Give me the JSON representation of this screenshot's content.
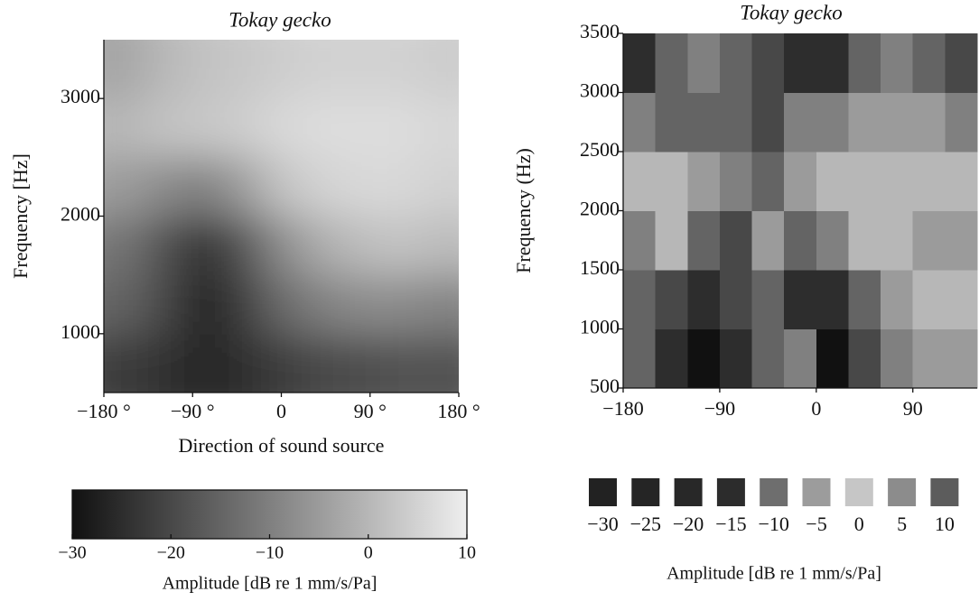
{
  "chart_data": [
    {
      "type": "heatmap",
      "title": "Tokay gecko",
      "xlabel": "Direction of sound source",
      "ylabel": "Frequency [Hz]",
      "x": [
        -160,
        -120,
        -80,
        -40,
        0,
        40,
        80,
        120,
        160
      ],
      "y": [
        750,
        1250,
        1750,
        2250,
        2750,
        3250
      ],
      "z": [
        [
          -22,
          -24,
          -26,
          -25,
          -22,
          -20,
          -19,
          -18,
          -18
        ],
        [
          -15,
          -20,
          -27,
          -22,
          -14,
          -10,
          -8,
          -8,
          -9
        ],
        [
          -12,
          -18,
          -24,
          -18,
          -8,
          -2,
          1,
          2,
          1
        ],
        [
          -5,
          -8,
          -10,
          -5,
          2,
          5,
          6,
          6,
          5
        ],
        [
          0,
          2,
          3,
          4,
          6,
          7,
          7,
          7,
          6
        ],
        [
          -3,
          0,
          2,
          3,
          4,
          5,
          5,
          5,
          4
        ]
      ],
      "zlim": [
        -30,
        10
      ],
      "colormap": [
        "#111111",
        "#eeeeee"
      ],
      "smooth": true,
      "xlim": [
        -180,
        180
      ],
      "xticks": [
        {
          "value": -180,
          "label": "−180 °"
        },
        {
          "value": -90,
          "label": "−90 °"
        },
        0,
        {
          "value": 90,
          "label": "90 °"
        },
        {
          "value": 180,
          "label": "180 °"
        }
      ],
      "ylim": [
        500,
        3500
      ],
      "yticks": [
        1000,
        2000,
        3000
      ],
      "colorbar": {
        "ticks": [
          {
            "value": -30,
            "label": "−30"
          },
          {
            "value": -20,
            "label": "−20"
          },
          {
            "value": -10,
            "label": "−10"
          },
          0,
          10
        ],
        "label": "Amplitude [dB re 1 mm/s/Pa]"
      }
    },
    {
      "type": "heatmap",
      "title": "Tokay gecko",
      "ylabel": "Frequency (Hz)",
      "x": [
        -165,
        -135,
        -105,
        -75,
        -45,
        -15,
        15,
        45,
        75,
        105,
        135
      ],
      "y": [
        750,
        1250,
        1750,
        2250,
        2750,
        3250
      ],
      "z": [
        [
          -15,
          -25,
          -30,
          -25,
          -15,
          -10,
          -30,
          -20,
          -10,
          -5,
          -5
        ],
        [
          -15,
          -20,
          -25,
          -20,
          -15,
          -25,
          -25,
          -15,
          -5,
          0,
          0
        ],
        [
          -10,
          0,
          -15,
          -20,
          -5,
          -15,
          -10,
          0,
          0,
          -5,
          -5
        ],
        [
          0,
          0,
          -5,
          -10,
          -15,
          -5,
          0,
          0,
          0,
          0,
          0
        ],
        [
          -10,
          -15,
          -15,
          -15,
          -20,
          -10,
          -10,
          -5,
          -5,
          -5,
          -10
        ],
        [
          -25,
          -15,
          -10,
          -15,
          -20,
          -25,
          -25,
          -15,
          -10,
          -15,
          -20
        ]
      ],
      "zlim": [
        -30,
        10
      ],
      "colormap": [
        "#111111",
        "#eeeeee"
      ],
      "smooth": false,
      "xlim": [
        -180,
        150
      ],
      "xticks": [
        {
          "value": -180,
          "label": "−180"
        },
        {
          "value": -90,
          "label": "−90"
        },
        0,
        90
      ],
      "ylim": [
        500,
        3500
      ],
      "yticks": [
        500,
        1000,
        1500,
        2000,
        2500,
        3000,
        3500
      ],
      "legend": {
        "values": [
          -30,
          -25,
          -20,
          -15,
          -10,
          -5,
          0,
          5,
          10
        ],
        "value_labels": [
          "−30",
          "−25",
          "−20",
          "−15",
          "−10",
          "−5",
          "0",
          "5",
          "10"
        ],
        "colors": [
          "#222222",
          "#252525",
          "#282828",
          "#2c2c2c",
          "#6e6e6e",
          "#9c9c9c",
          "#c6c6c6",
          "#8c8c8c",
          "#5c5c5c"
        ],
        "label": "Amplitude [dB re 1 mm/s/Pa]"
      }
    }
  ]
}
